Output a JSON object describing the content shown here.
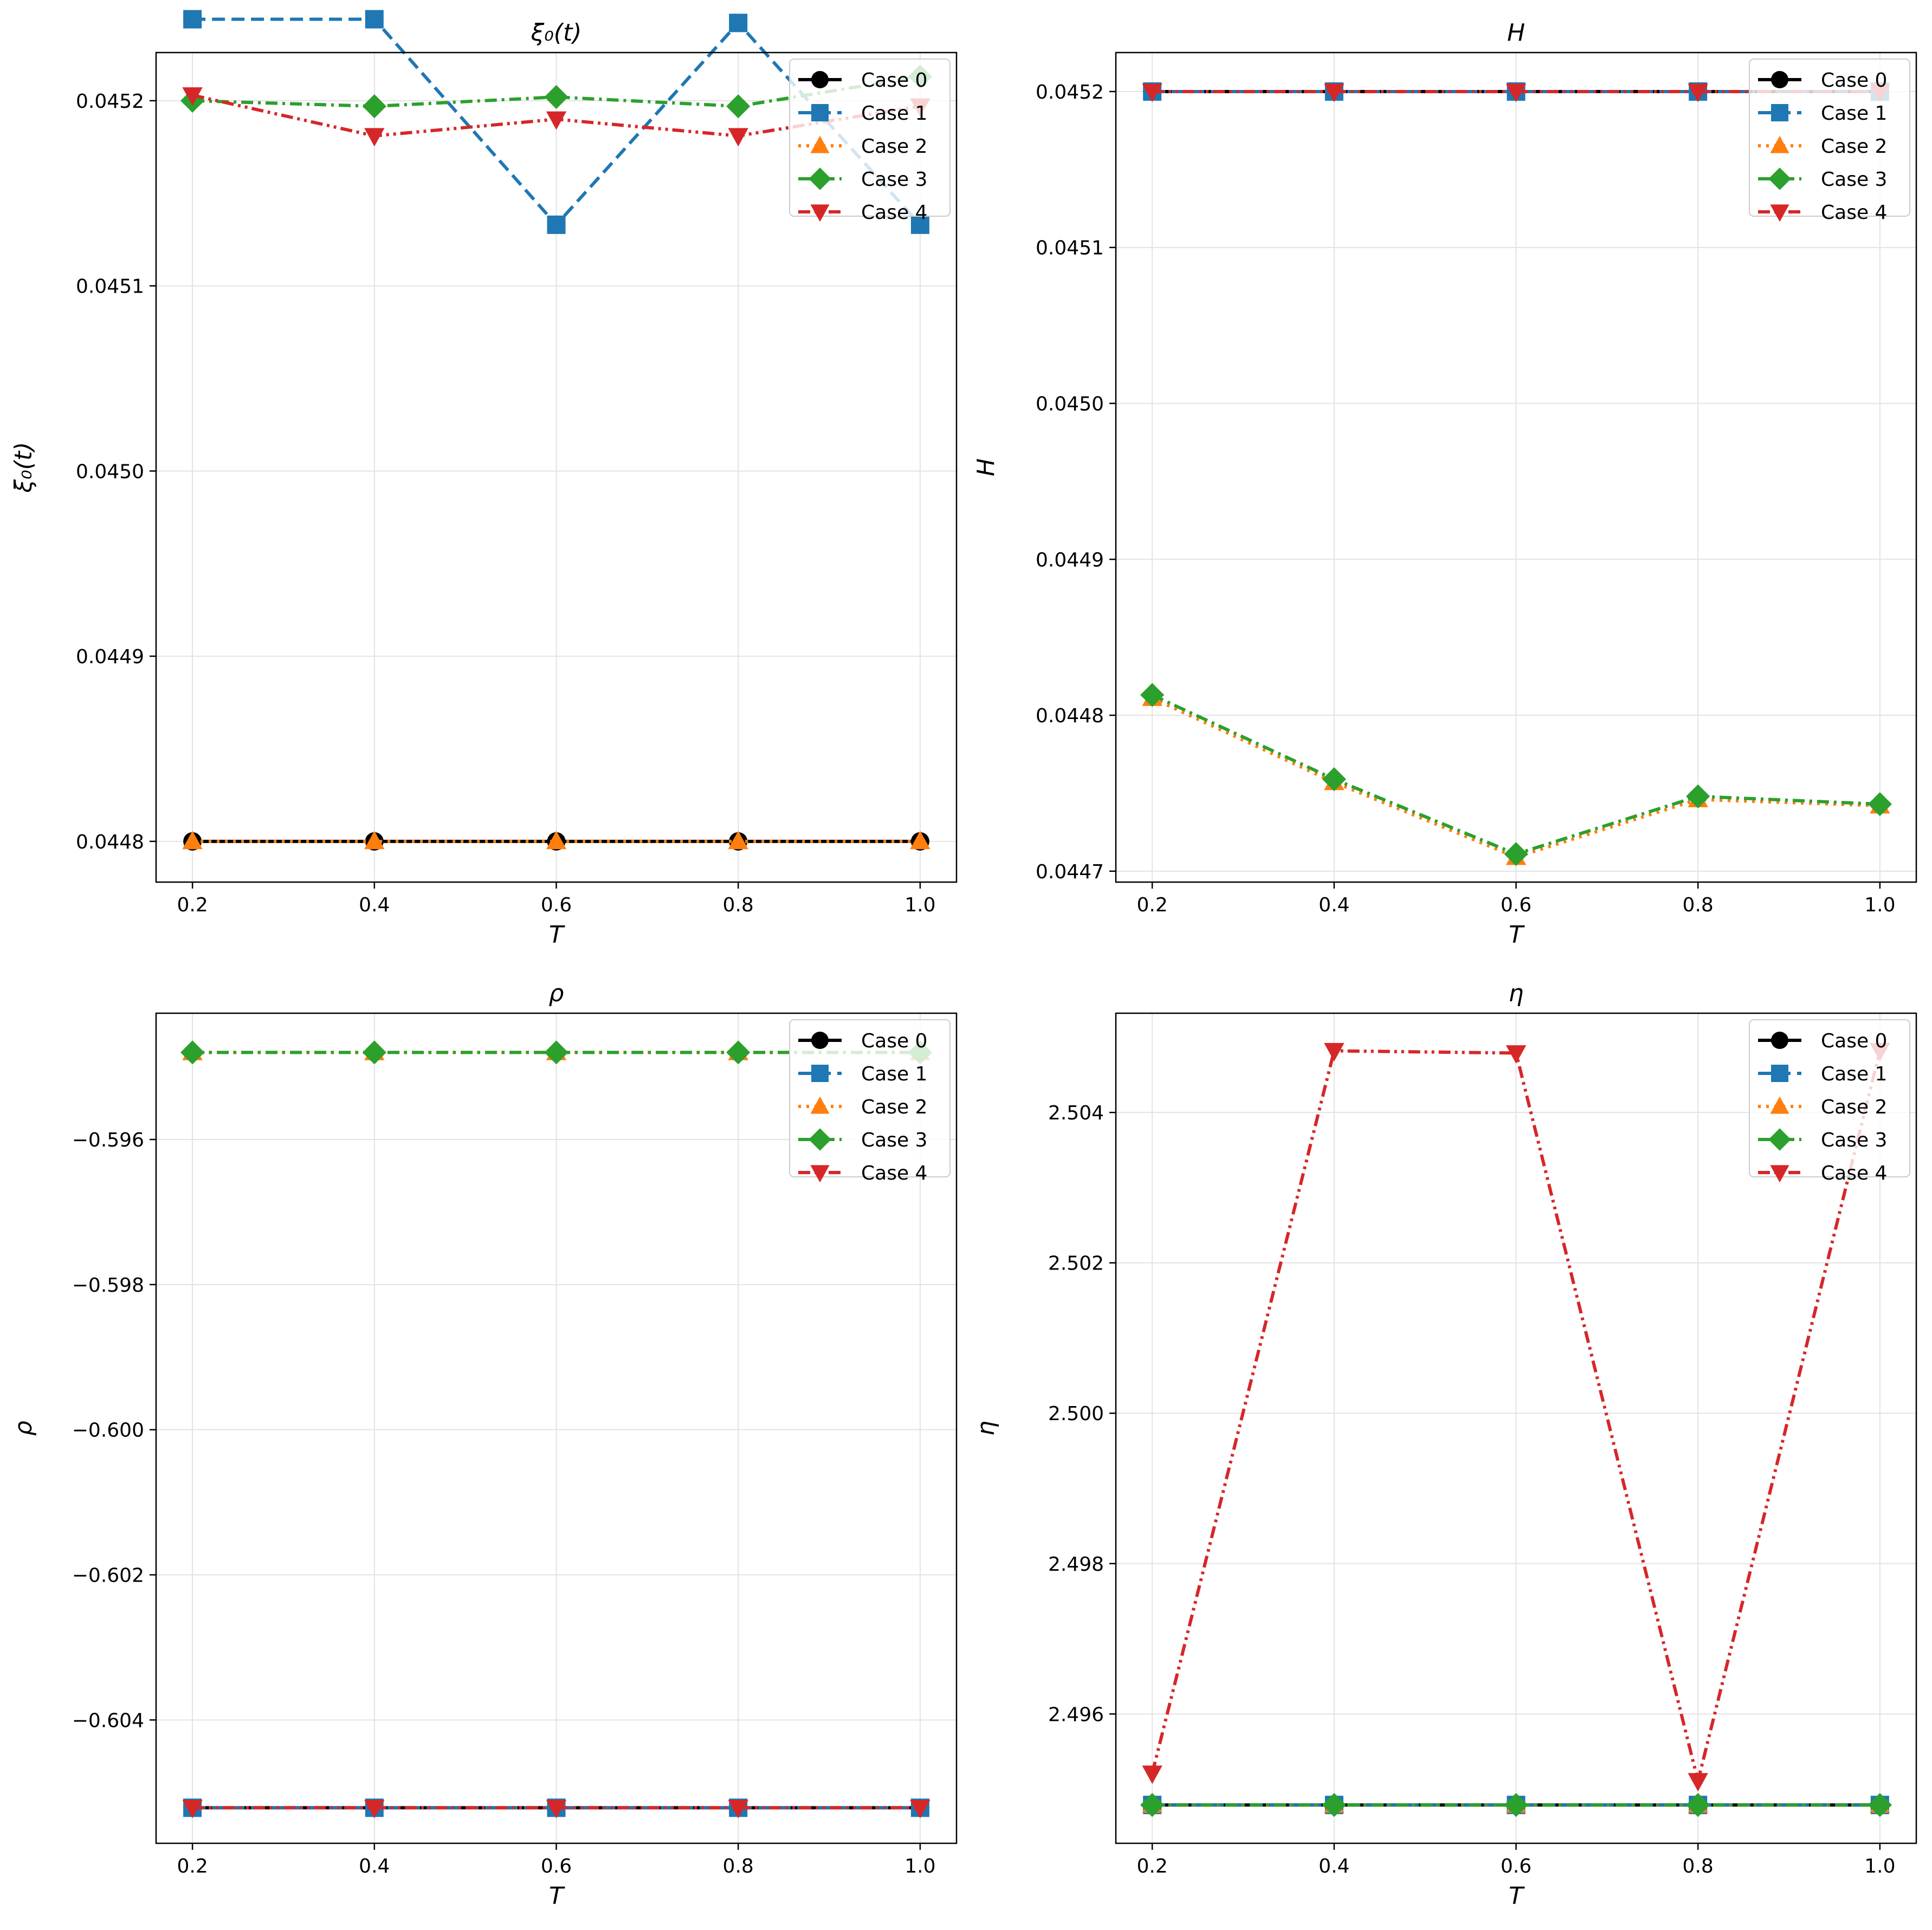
{
  "figure": {
    "background": "#ffffff"
  },
  "series_styles": [
    {
      "name": "Case 0",
      "color": "#000000",
      "marker": "circle",
      "dash": "solid"
    },
    {
      "name": "Case 1",
      "color": "#1f77b4",
      "marker": "square",
      "dash": "dashed"
    },
    {
      "name": "Case 2",
      "color": "#ff7f0e",
      "marker": "triangle-up",
      "dash": "dotted"
    },
    {
      "name": "Case 3",
      "color": "#2ca02c",
      "marker": "diamond",
      "dash": "dashdot"
    },
    {
      "name": "Case 4",
      "color": "#d62728",
      "marker": "triangle-down",
      "dash": "dashdotdot"
    }
  ],
  "chart_data": [
    {
      "id": "xi",
      "type": "line",
      "title": "ξ₀(t)",
      "xlabel": "T",
      "ylabel": "ξ₀(t)",
      "xlim": [
        0.16,
        1.04
      ],
      "ylim": [
        0.044778,
        0.045226
      ],
      "xticks": [
        0.2,
        0.4,
        0.6,
        0.8,
        1.0
      ],
      "xtick_labels": [
        "0.2",
        "0.4",
        "0.6",
        "0.8",
        "1.0"
      ],
      "yticks": [
        0.0448,
        0.0449,
        0.045,
        0.0451,
        0.0452
      ],
      "ytick_labels": [
        "0.0448",
        "0.0449",
        "0.0450",
        "0.0451",
        "0.0452"
      ],
      "grid": true,
      "legend_loc": "upper-right",
      "x": [
        0.2,
        0.4,
        0.6,
        0.8,
        1.0
      ],
      "series": [
        {
          "name": "Case 0",
          "values": [
            0.0448,
            0.0448,
            0.0448,
            0.0448,
            0.0448
          ]
        },
        {
          "name": "Case 1",
          "values": [
            0.045244,
            0.045244,
            0.045133,
            0.045242,
            0.045133
          ]
        },
        {
          "name": "Case 2",
          "values": [
            0.0448,
            0.0448,
            0.0448,
            0.0448,
            0.0448
          ]
        },
        {
          "name": "Case 3",
          "values": [
            0.0452,
            0.045197,
            0.045202,
            0.045197,
            0.045213
          ]
        },
        {
          "name": "Case 4",
          "values": [
            0.045203,
            0.045181,
            0.04519,
            0.045181,
            0.045197
          ]
        }
      ]
    },
    {
      "id": "H",
      "type": "line",
      "title": "H",
      "xlabel": "T",
      "ylabel": "H",
      "xlim": [
        0.16,
        1.04
      ],
      "ylim": [
        0.044693,
        0.045225
      ],
      "xticks": [
        0.2,
        0.4,
        0.6,
        0.8,
        1.0
      ],
      "xtick_labels": [
        "0.2",
        "0.4",
        "0.6",
        "0.8",
        "1.0"
      ],
      "yticks": [
        0.0447,
        0.0448,
        0.0449,
        0.045,
        0.0451,
        0.0452
      ],
      "ytick_labels": [
        "0.0447",
        "0.0448",
        "0.0449",
        "0.0450",
        "0.0451",
        "0.0452"
      ],
      "grid": true,
      "legend_loc": "upper-right",
      "x": [
        0.2,
        0.4,
        0.6,
        0.8,
        1.0
      ],
      "series": [
        {
          "name": "Case 0",
          "values": [
            0.0452,
            0.0452,
            0.0452,
            0.0452,
            0.0452
          ]
        },
        {
          "name": "Case 1",
          "values": [
            0.0452,
            0.0452,
            0.0452,
            0.0452,
            0.0452
          ]
        },
        {
          "name": "Case 2",
          "values": [
            0.044811,
            0.044757,
            0.044709,
            0.044746,
            0.044742
          ]
        },
        {
          "name": "Case 3",
          "values": [
            0.044813,
            0.044759,
            0.044711,
            0.044748,
            0.044743
          ]
        },
        {
          "name": "Case 4",
          "values": [
            0.0452,
            0.0452,
            0.0452,
            0.0452,
            0.0452
          ]
        }
      ]
    },
    {
      "id": "rho",
      "type": "line",
      "title": "ρ",
      "xlabel": "T",
      "ylabel": "ρ",
      "xlim": [
        0.16,
        1.04
      ],
      "ylim": [
        -0.6057,
        -0.59426
      ],
      "xticks": [
        0.2,
        0.4,
        0.6,
        0.8,
        1.0
      ],
      "xtick_labels": [
        "0.2",
        "0.4",
        "0.6",
        "0.8",
        "1.0"
      ],
      "yticks": [
        -0.604,
        -0.602,
        -0.6,
        -0.598,
        -0.596
      ],
      "ytick_labels": [
        "−0.604",
        "−0.602",
        "−0.600",
        "−0.598",
        "−0.596"
      ],
      "grid": true,
      "legend_loc": "upper-right",
      "x": [
        0.2,
        0.4,
        0.6,
        0.8,
        1.0
      ],
      "series": [
        {
          "name": "Case 0",
          "values": [
            -0.60521,
            -0.60521,
            -0.60521,
            -0.60521,
            -0.60521
          ]
        },
        {
          "name": "Case 1",
          "values": [
            -0.60521,
            -0.60521,
            -0.60521,
            -0.60521,
            -0.60521
          ]
        },
        {
          "name": "Case 2",
          "values": [
            -0.5948,
            -0.5948,
            -0.5948,
            -0.5948,
            -0.5948
          ]
        },
        {
          "name": "Case 3",
          "values": [
            -0.5948,
            -0.5948,
            -0.5948,
            -0.5948,
            -0.5948
          ]
        },
        {
          "name": "Case 4",
          "values": [
            -0.60521,
            -0.60521,
            -0.60521,
            -0.60521,
            -0.60521
          ]
        }
      ]
    },
    {
      "id": "eta",
      "type": "line",
      "title": "η",
      "xlabel": "T",
      "ylabel": "η",
      "xlim": [
        0.16,
        1.04
      ],
      "ylim": [
        2.49428,
        2.50532
      ],
      "xticks": [
        0.2,
        0.4,
        0.6,
        0.8,
        1.0
      ],
      "xtick_labels": [
        "0.2",
        "0.4",
        "0.6",
        "0.8",
        "1.0"
      ],
      "yticks": [
        2.496,
        2.498,
        2.5,
        2.502,
        2.504
      ],
      "ytick_labels": [
        "2.496",
        "2.498",
        "2.500",
        "2.502",
        "2.504"
      ],
      "grid": true,
      "legend_loc": "upper-right",
      "x": [
        0.2,
        0.4,
        0.6,
        0.8,
        1.0
      ],
      "series": [
        {
          "name": "Case 0",
          "values": [
            2.49479,
            2.49479,
            2.49479,
            2.49479,
            2.49479
          ]
        },
        {
          "name": "Case 1",
          "values": [
            2.49479,
            2.49479,
            2.49479,
            2.49479,
            2.49479
          ]
        },
        {
          "name": "Case 2",
          "values": [
            2.49479,
            2.49479,
            2.49479,
            2.49479,
            2.49479
          ]
        },
        {
          "name": "Case 3",
          "values": [
            2.49479,
            2.49479,
            2.49479,
            2.49479,
            2.49479
          ]
        },
        {
          "name": "Case 4",
          "values": [
            2.49521,
            2.50482,
            2.50479,
            2.49511,
            2.50482
          ]
        }
      ]
    }
  ]
}
